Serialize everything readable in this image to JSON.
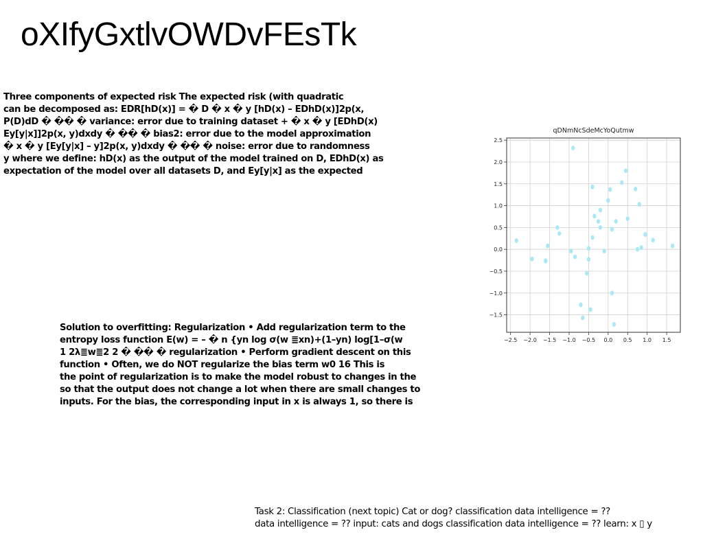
{
  "title": "oXIfyGxtlvOWDvFEsTk",
  "risk_block": {
    "lines": [
      "Three components of expected risk The expected risk (with quadratic",
      "can be decomposed as: EDR[hD(x)] = � D � x � y [hD(x) – EDhD(x)]2p(x,",
      "P(D)dD � �� � variance: error due to training dataset + � x � y [EDhD(x)",
      "Ey[y|x]]2p(x, y)dxdy � �� � bias2: error due to the model approximation",
      "� x � y [Ey[y|x] – y]2p(x, y)dxdy � �� � noise: error due to randomness",
      "y where we define: hD(x) as the output of the model trained on D, EDhD(x) as",
      "expectation of the model over all datasets D, and Ey[y|x] as the expected"
    ]
  },
  "reg_block": {
    "lines": [
      "Solution to overfitting: Regularization • Add regularization term to the",
      "entropy loss function E(w) = – � n {yn log σ(w ≣xn)+(1–yn) log[1–σ(w",
      "1 2λ≣w≣2 2 � �� � regularization • Perform gradient descent on this",
      "function • Often, we do NOT regularize the bias term w0 16 This is",
      "the point of regularization is to make the model robust to changes in the",
      "so that the output does not change a lot when there are small changes to",
      "inputs. For the bias, the corresponding input in x is always 1, so there is"
    ]
  },
  "footer": {
    "lines": [
      "Task 2: Classification (next topic) Cat or dog? classification data intelligence = ??",
      "data intelligence = ?? input: cats and dogs classification data intelligence = ?? learn: x ▯ y"
    ]
  },
  "chart_data": {
    "type": "scatter",
    "title": "qDNmNcSdeMcYoQutmw",
    "xlabel": "",
    "ylabel": "",
    "xlim": [
      -2.6,
      1.85
    ],
    "ylim": [
      -1.9,
      2.55
    ],
    "xticks": [
      -2.5,
      -2.0,
      -1.5,
      -1.0,
      -0.5,
      0.0,
      0.5,
      1.0,
      1.5
    ],
    "yticks": [
      -1.5,
      -1.0,
      -0.5,
      0.0,
      0.5,
      1.0,
      1.5,
      2.0,
      2.5
    ],
    "xtick_labels": [
      "−2.5",
      "−2.0",
      "−1.5",
      "−1.0",
      "−0.5",
      "0.0",
      "0.5",
      "1.0",
      "1.5"
    ],
    "ytick_labels": [
      "−1.5",
      "−1.0",
      "−0.5",
      "0.0",
      "0.5",
      "1.0",
      "1.5",
      "2.0",
      "2.5"
    ],
    "grid": true,
    "point_color": "#a8e9f5",
    "x": [
      -2.35,
      -1.95,
      -1.6,
      -1.6,
      -1.55,
      -1.3,
      -1.25,
      -0.95,
      -0.9,
      -0.85,
      -0.7,
      -0.65,
      -0.55,
      -0.5,
      -0.5,
      -0.45,
      -0.4,
      -0.4,
      -0.35,
      -0.25,
      -0.2,
      -0.2,
      -0.1,
      0.0,
      0.05,
      0.1,
      0.1,
      0.15,
      0.2,
      0.35,
      0.45,
      0.5,
      0.7,
      0.75,
      0.8,
      0.85,
      0.95,
      1.15,
      1.65
    ],
    "y": [
      0.2,
      -0.22,
      -0.27,
      -0.26,
      0.08,
      0.5,
      0.36,
      -0.04,
      2.32,
      -0.17,
      -1.27,
      -1.57,
      -0.55,
      -0.23,
      0.02,
      -1.38,
      1.43,
      0.27,
      0.76,
      0.64,
      0.5,
      0.9,
      -0.04,
      1.12,
      1.37,
      0.46,
      -1.0,
      -1.72,
      0.64,
      1.53,
      1.8,
      0.7,
      1.38,
      0.0,
      1.03,
      0.04,
      0.34,
      0.21,
      0.08
    ]
  }
}
